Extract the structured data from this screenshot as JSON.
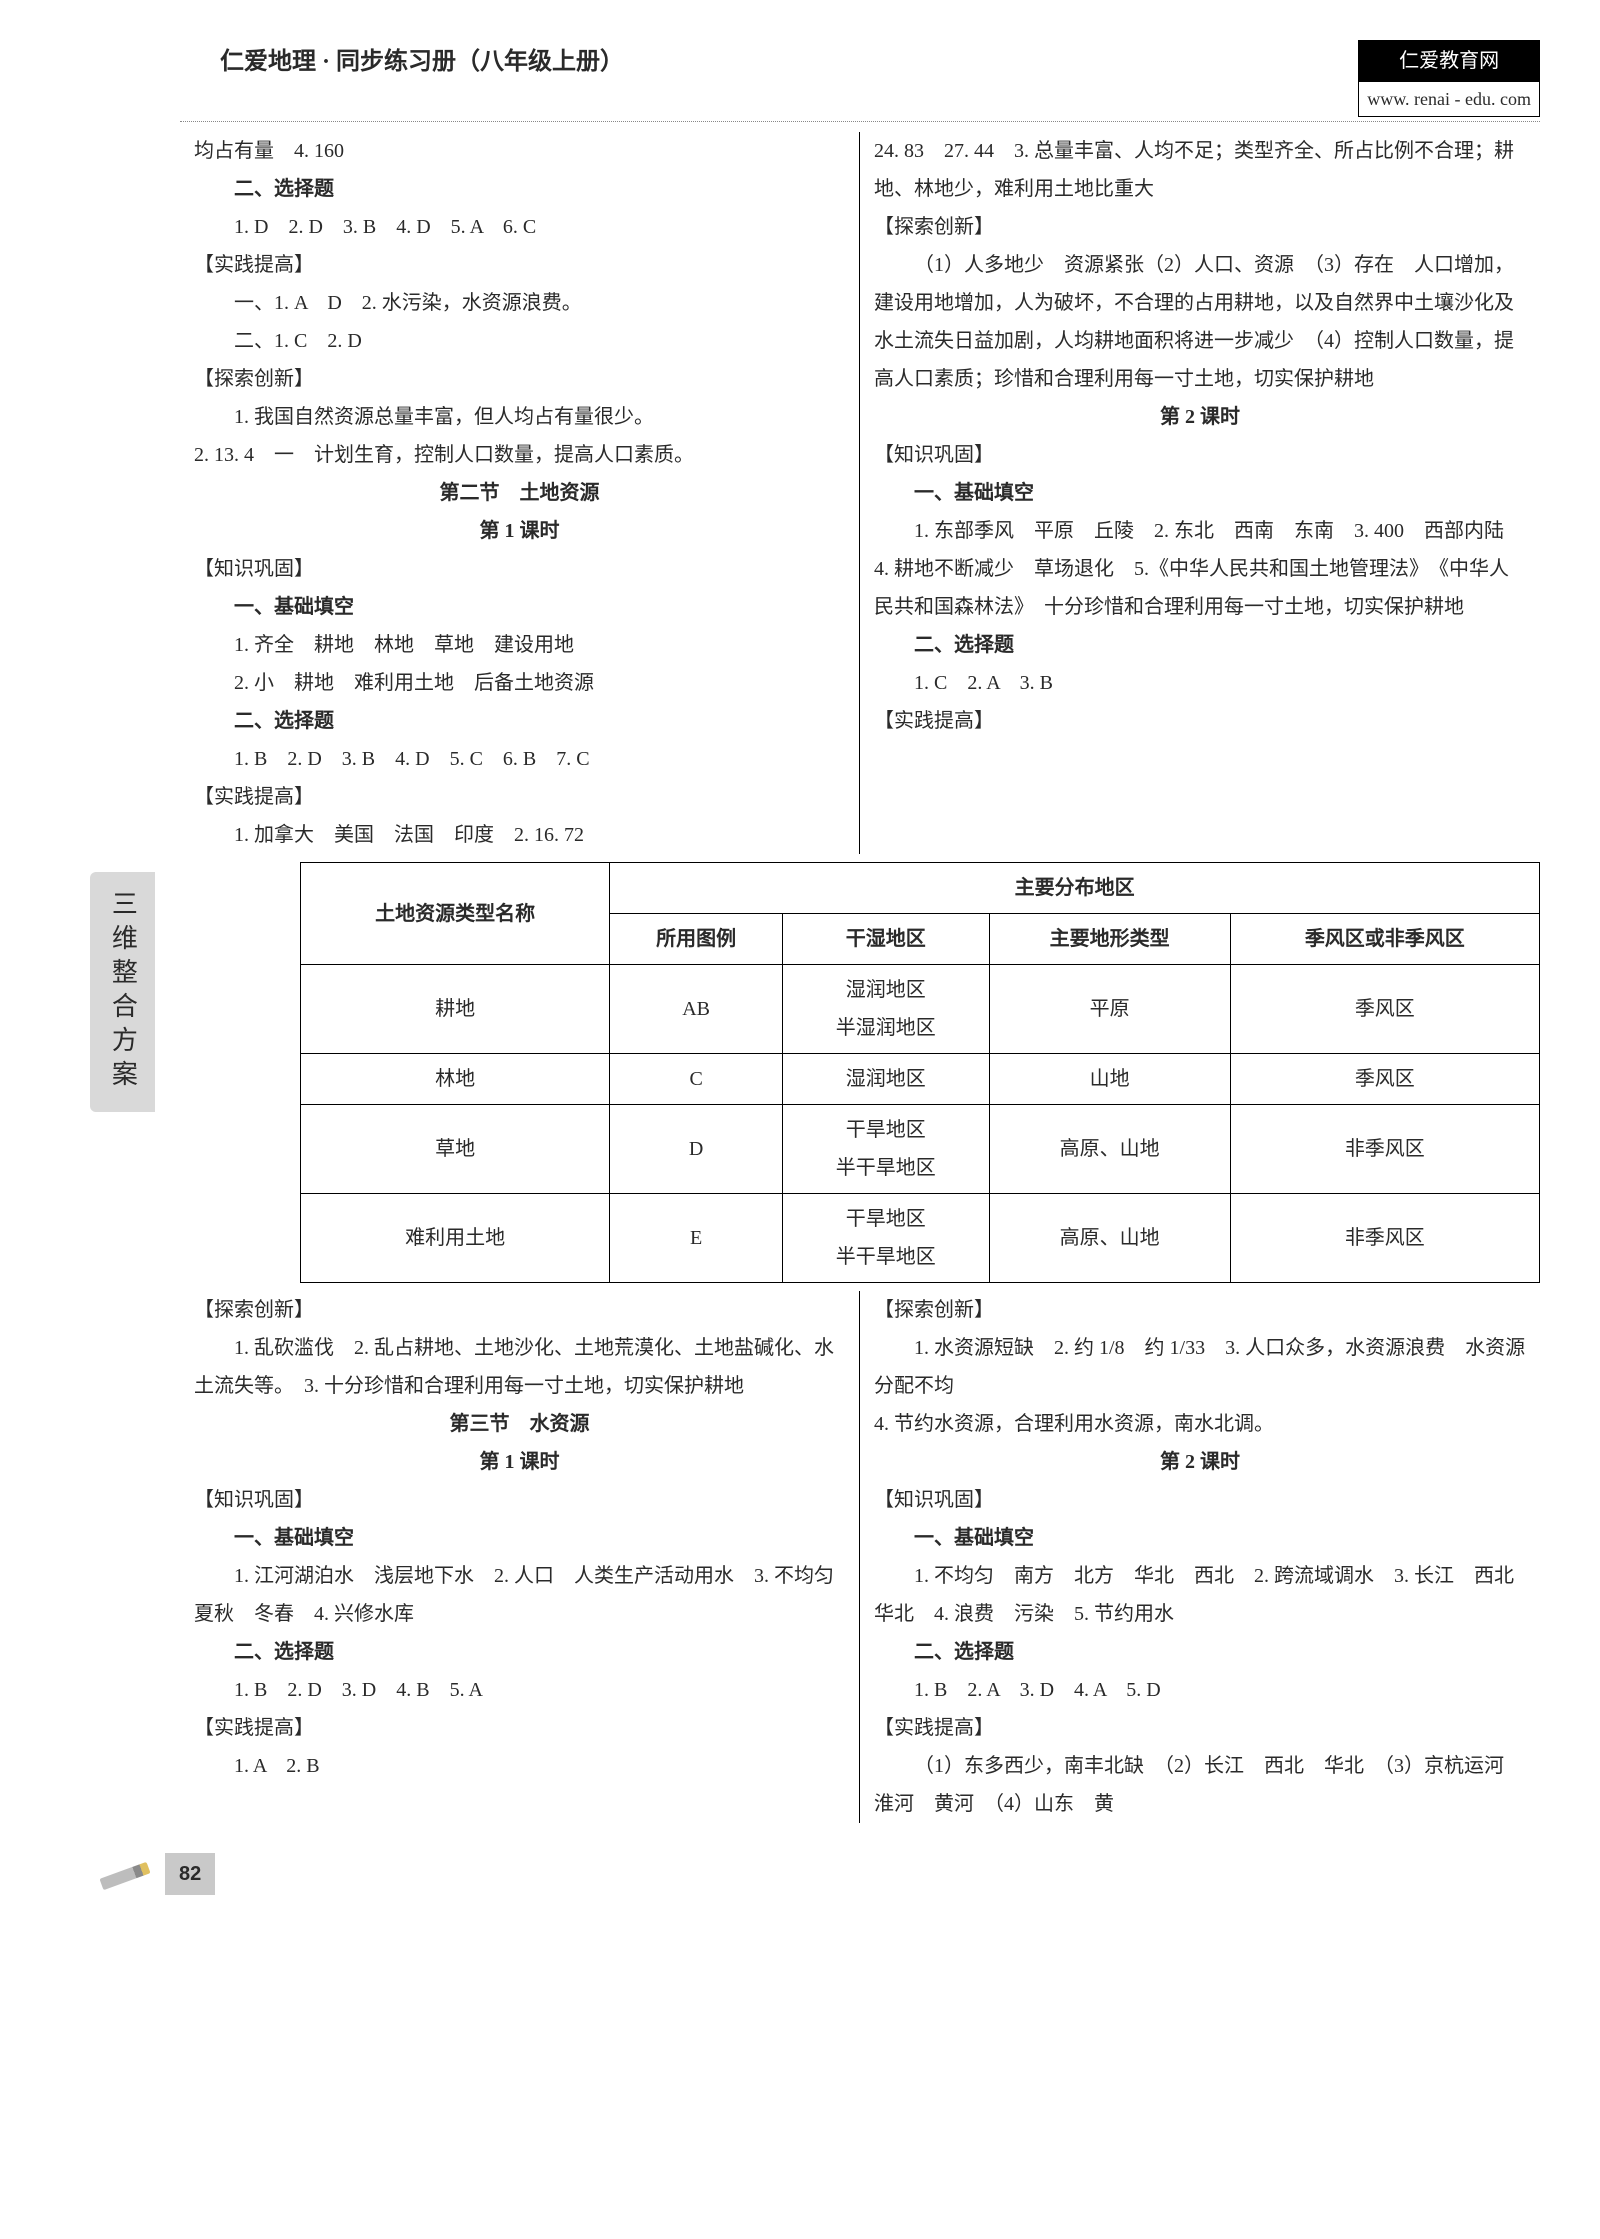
{
  "header": {
    "book_title": "仁爱地理 · 同步练习册（八年级上册）",
    "site_name": "仁爱教育网",
    "site_url": "www. renai - edu. com"
  },
  "side_tab": "三维整合方案",
  "left_top": {
    "line1": "均占有量　4. 160",
    "h_choice": "二、选择题",
    "choice1": "1. D　2. D　3. B　4. D　5. A　6. C",
    "br_practice": "【实践提高】",
    "p1": "一、1. A　D　2. 水污染，水资源浪费。",
    "p2": "二、1. C　2. D",
    "br_explore": "【探索创新】",
    "e1": "1. 我国自然资源总量丰富，但人均占有量很少。",
    "e2": "2. 13. 4　一　计划生育，控制人口数量，提高人口素质。",
    "sec2_title": "第二节　土地资源",
    "lesson1": "第 1 课时",
    "br_know": "【知识巩固】",
    "h_fill": "一、基础填空",
    "f1": "1. 齐全　耕地　林地　草地　建设用地",
    "f2": "2. 小　耕地　难利用土地　后备土地资源",
    "h_choice2": "二、选择题",
    "choice2": "1. B　2. D　3. B　4. D　5. C　6. B　7. C",
    "br_practice2": "【实践提高】",
    "pr2": "1. 加拿大　美国　法国　印度　2. 16. 72"
  },
  "right_top": {
    "r1": "24. 83　27. 44　3. 总量丰富、人均不足；类型齐全、所占比例不合理；耕地、林地少，难利用土地比重大",
    "br_explore": "【探索创新】",
    "e1": "（1）人多地少　资源紧张（2）人口、资源　（3）存在　人口增加，建设用地增加，人为破坏，不合理的占用耕地，以及自然界中土壤沙化及水土流失日益加剧，人均耕地面积将进一步减少　（4）控制人口数量，提高人口素质；珍惜和合理利用每一寸土地，切实保护耕地",
    "lesson2": "第 2 课时",
    "br_know": "【知识巩固】",
    "h_fill": "一、基础填空",
    "f1": "1. 东部季风　平原　丘陵　2. 东北　西南　东南　3. 400　西部内陆　4. 耕地不断减少　草场退化　5.《中华人民共和国土地管理法》　《中华人民共和国森林法》　十分珍惜和合理利用每一寸土地，切实保护耕地",
    "h_choice": "二、选择题",
    "choice": "1. C　2. A　3. B",
    "br_practice": "【实践提高】"
  },
  "table": {
    "h_type": "土地资源类型名称",
    "h_main": "主要分布地区",
    "h_legend": "所用图例",
    "h_wet": "干湿地区",
    "h_land": "主要地形类型",
    "h_monsoon": "季风区或非季风区",
    "rows": [
      [
        "耕地",
        "AB",
        "湿润地区\n半湿润地区",
        "平原",
        "季风区"
      ],
      [
        "林地",
        "C",
        "湿润地区",
        "山地",
        "季风区"
      ],
      [
        "草地",
        "D",
        "干旱地区\n半干旱地区",
        "高原、山地",
        "非季风区"
      ],
      [
        "难利用土地",
        "E",
        "干旱地区\n半干旱地区",
        "高原、山地",
        "非季风区"
      ]
    ]
  },
  "left_bottom": {
    "br_explore": "【探索创新】",
    "e1": "1. 乱砍滥伐　2. 乱占耕地、土地沙化、土地荒漠化、土地盐碱化、水土流失等。　3. 十分珍惜和合理利用每一寸土地，切实保护耕地",
    "sec3_title": "第三节　水资源",
    "lesson1": "第 1 课时",
    "br_know": "【知识巩固】",
    "h_fill": "一、基础填空",
    "f1": "1. 江河湖泊水　浅层地下水　2. 人口　人类生产活动用水　3. 不均匀　夏秋　冬春　4. 兴修水库",
    "h_choice": "二、选择题",
    "choice": "1. B　2. D　3. D　4. B　5. A",
    "br_practice": "【实践提高】",
    "pr": "1. A　2. B"
  },
  "right_bottom": {
    "br_explore": "【探索创新】",
    "e1": "1. 水资源短缺　2. 约 1/8　约 1/33　3. 人口众多，水资源浪费　水资源分配不均",
    "e2": "4. 节约水资源，合理利用水资源，南水北调。",
    "lesson2": "第 2 课时",
    "br_know": "【知识巩固】",
    "h_fill": "一、基础填空",
    "f1": "1. 不均匀　南方　北方　华北　西北　2. 跨流域调水　3. 长江　西北　华北　4. 浪费　污染　5. 节约用水",
    "h_choice": "二、选择题",
    "choice": "1. B　2. A　3. D　4. A　5. D",
    "br_practice": "【实践提高】",
    "pr": "（1）东多西少，南丰北缺　（2）长江　西北　华北　（3）京杭运河　淮河　黄河　（4）山东　黄"
  },
  "page_number": "82"
}
